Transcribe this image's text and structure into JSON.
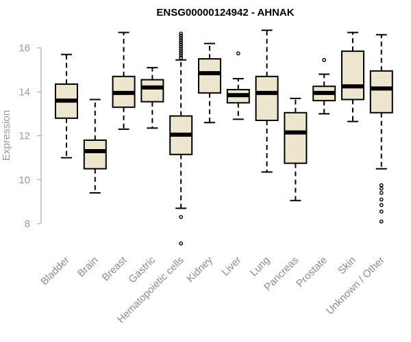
{
  "chart_data": {
    "type": "box",
    "title": "ENSG00000124942 - AHNAK",
    "xlabel": "",
    "ylabel": "Expression",
    "ylim": [
      7,
      16.9
    ],
    "yticks": [
      8,
      10,
      12,
      14,
      16
    ],
    "box_fill": "#ede6cc",
    "outline": "#000000",
    "categories": [
      "Bladder",
      "Brain",
      "Breast",
      "Gastric",
      "Hematopoietic cells",
      "Kidney",
      "Liver",
      "Lung",
      "Pancreas",
      "Prostate",
      "Skin",
      "Unknown / Other"
    ],
    "boxes": [
      {
        "whislo": 11.0,
        "q1": 12.8,
        "med": 13.6,
        "q3": 14.35,
        "whishi": 15.7,
        "fliers": []
      },
      {
        "whislo": 9.4,
        "q1": 10.5,
        "med": 11.3,
        "q3": 11.8,
        "whishi": 13.65,
        "fliers": []
      },
      {
        "whislo": 12.3,
        "q1": 13.3,
        "med": 13.95,
        "q3": 14.7,
        "whishi": 16.7,
        "fliers": []
      },
      {
        "whislo": 12.35,
        "q1": 13.55,
        "med": 14.2,
        "q3": 14.55,
        "whishi": 15.1,
        "fliers": []
      },
      {
        "whislo": 8.7,
        "q1": 11.15,
        "med": 12.05,
        "q3": 12.9,
        "whishi": 15.45,
        "fliers": [
          7.1,
          8.3,
          15.55,
          15.65,
          15.75,
          15.85,
          15.95,
          16.05,
          16.15,
          16.25,
          16.35,
          16.45,
          16.55,
          16.65
        ]
      },
      {
        "whislo": 12.6,
        "q1": 13.95,
        "med": 14.85,
        "q3": 15.5,
        "whishi": 16.2,
        "fliers": []
      },
      {
        "whislo": 12.75,
        "q1": 13.5,
        "med": 13.85,
        "q3": 14.1,
        "whishi": 14.6,
        "fliers": [
          15.75
        ]
      },
      {
        "whislo": 10.35,
        "q1": 12.7,
        "med": 13.95,
        "q3": 14.7,
        "whishi": 16.8,
        "fliers": []
      },
      {
        "whislo": 9.05,
        "q1": 10.75,
        "med": 12.15,
        "q3": 13.05,
        "whishi": 13.7,
        "fliers": []
      },
      {
        "whislo": 13.0,
        "q1": 13.6,
        "med": 13.95,
        "q3": 14.25,
        "whishi": 14.8,
        "fliers": [
          15.45
        ]
      },
      {
        "whislo": 12.65,
        "q1": 13.65,
        "med": 14.25,
        "q3": 15.85,
        "whishi": 16.7,
        "fliers": []
      },
      {
        "whislo": 10.5,
        "q1": 13.05,
        "med": 14.15,
        "q3": 14.95,
        "whishi": 16.6,
        "fliers": [
          8.1,
          8.55,
          8.85,
          9.1,
          9.4,
          9.6,
          9.75
        ]
      }
    ]
  }
}
